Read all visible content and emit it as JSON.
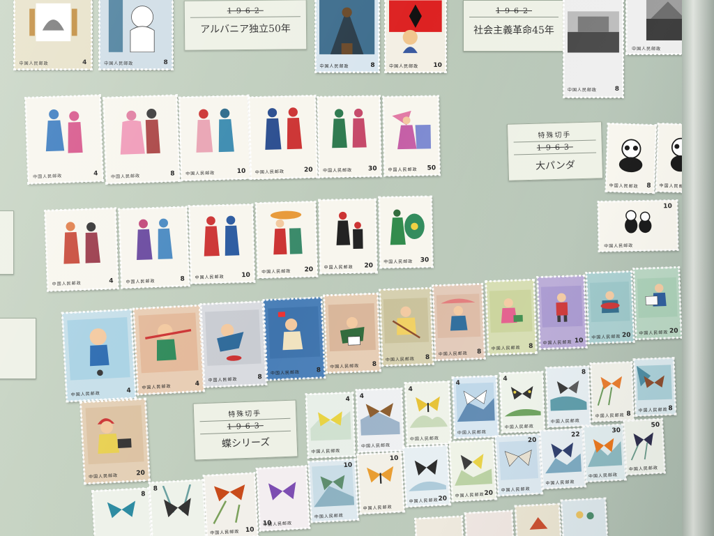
{
  "cards": {
    "albania": {
      "year": "1962",
      "title": "アルバニア独立50年"
    },
    "revolution": {
      "year": "1962",
      "title": "社会主義革命45年"
    },
    "panda": {
      "header": "特殊切手",
      "year": "1963",
      "title": "大パンダ"
    },
    "butterfly": {
      "header": "特殊切手",
      "year": "1963",
      "title": "蝶シリーズ"
    }
  },
  "stamp_text": {
    "country": "中国人民邮政",
    "values": {
      "s4": "4",
      "s8": "8",
      "s10": "10",
      "s20": "20",
      "s22": "22",
      "s30": "30",
      "s50": "50"
    }
  }
}
